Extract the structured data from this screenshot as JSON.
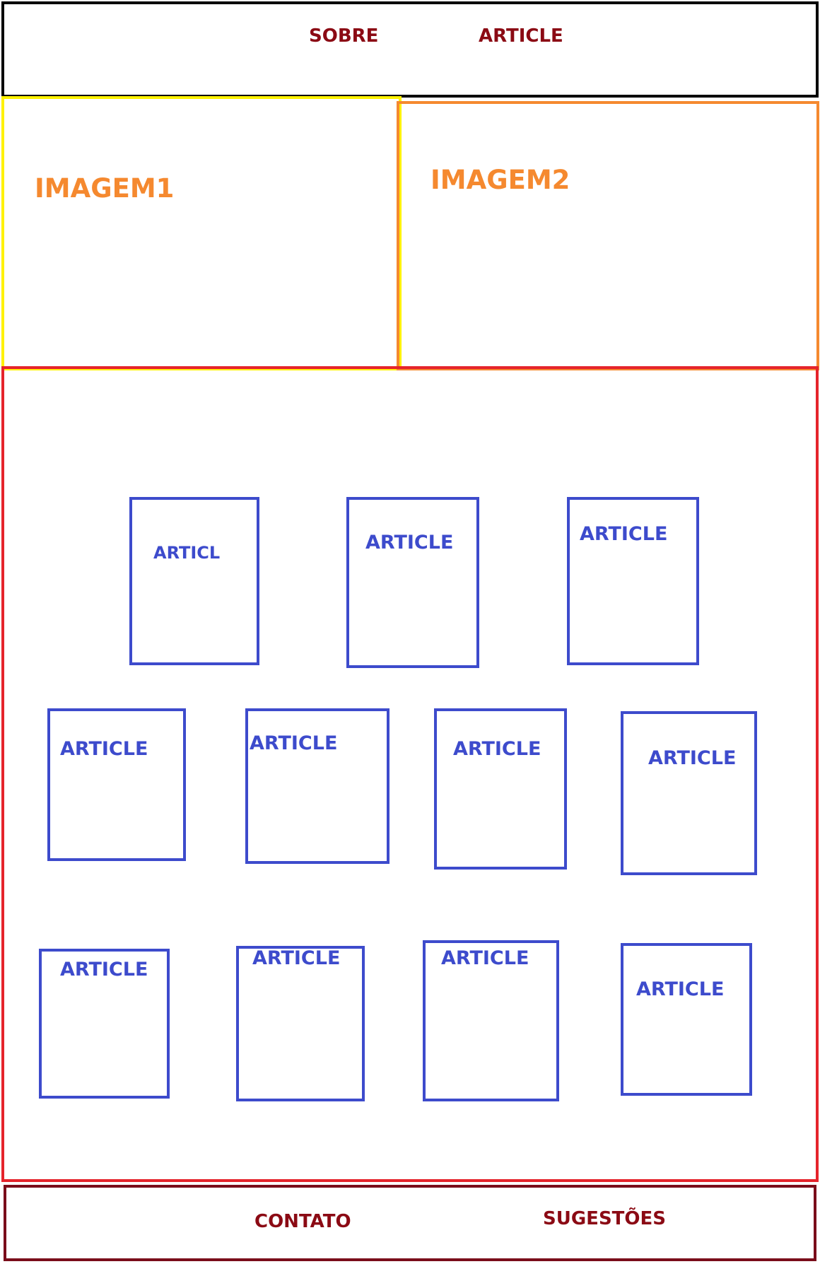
{
  "header": {
    "nav": [
      "SOBRE",
      "ARTICLE"
    ]
  },
  "images": {
    "image1_label": "IMAGEM1",
    "image2_label": "IMAGEM2"
  },
  "articles": [
    "ARTICL",
    "ARTICLE",
    "ARTICLE",
    "ARTICLE",
    "ARTICLE",
    "ARTICLE",
    "ARTICLE",
    "ARTICLE",
    "ARTICLE",
    "ARTICLE",
    "ARTICLE"
  ],
  "footer": {
    "links": [
      "CONTATO",
      "SUGESTÕES"
    ]
  },
  "colors": {
    "header_border": "#000000",
    "image1_border": "#fff200",
    "image2_border": "#f5892f",
    "main_border": "#e5242b",
    "article_border": "#3d4bcc",
    "footer_border": "#7a0d1a",
    "nav_text": "#8b0a14"
  }
}
